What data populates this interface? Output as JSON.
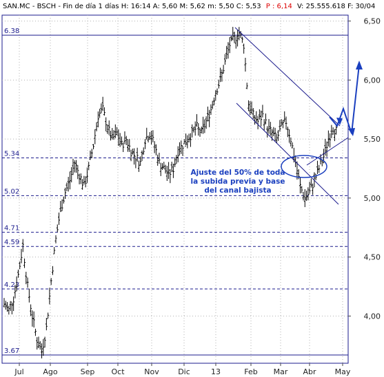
{
  "header": {
    "prefix": "SAN.MC - BSCH - Fin de día 1 días H: 16:14 A: 5,60 M: 5,62 m: 5,50 C: 5,53",
    "p_label": "P : 6,14",
    "suffix": "V: 25.555.618 F: 30/04"
  },
  "colors": {
    "background": "#ffffff",
    "price": "#000000",
    "lines": "#1a1a8c",
    "annotation": "#1a3fbf",
    "header_red": "#dd0000",
    "grid": "#b0b0b0"
  },
  "chart_data": {
    "type": "bar",
    "style": "ohlc",
    "x_tick_labels": [
      "Jul",
      "Ago",
      "Sep",
      "Oct",
      "Nov",
      "Dic",
      "13",
      "Feb",
      "Mar",
      "Abr",
      "May"
    ],
    "y_tick_labels": [
      "4,00",
      "4,50",
      "5,00",
      "5,50",
      "6,00",
      "6,50"
    ],
    "ylim": [
      3.6,
      6.55
    ],
    "grid": true,
    "close_series": [
      4.1,
      4.05,
      4.15,
      4.35,
      4.6,
      4.25,
      4.0,
      3.8,
      3.7,
      3.9,
      4.3,
      4.65,
      4.9,
      5.05,
      5.15,
      5.3,
      5.2,
      5.1,
      5.25,
      5.45,
      5.7,
      5.75,
      5.6,
      5.5,
      5.55,
      5.45,
      5.5,
      5.4,
      5.35,
      5.3,
      5.5,
      5.55,
      5.45,
      5.3,
      5.25,
      5.2,
      5.25,
      5.4,
      5.45,
      5.5,
      5.55,
      5.6,
      5.55,
      5.65,
      5.75,
      5.9,
      6.0,
      6.15,
      6.3,
      6.35,
      6.4,
      6.3,
      5.8,
      5.7,
      5.65,
      5.7,
      5.6,
      5.55,
      5.5,
      5.6,
      5.65,
      5.5,
      5.3,
      5.1,
      5.0,
      5.05,
      5.15,
      5.25,
      5.35,
      5.5,
      5.6,
      5.55
    ],
    "horizontal_levels": [
      {
        "label": "6.38",
        "value": 6.38
      },
      {
        "label": "5.34",
        "value": 5.34
      },
      {
        "label": "5.02",
        "value": 5.02
      },
      {
        "label": "4.71",
        "value": 4.71
      },
      {
        "label": "4.59",
        "value": 4.59
      },
      {
        "label": "4.23",
        "value": 4.23
      },
      {
        "label": "3.67",
        "value": 3.67
      }
    ],
    "annotation": [
      "Ajuste del 50% de toda",
      "la subida previa y base",
      "del canal bajista"
    ]
  }
}
